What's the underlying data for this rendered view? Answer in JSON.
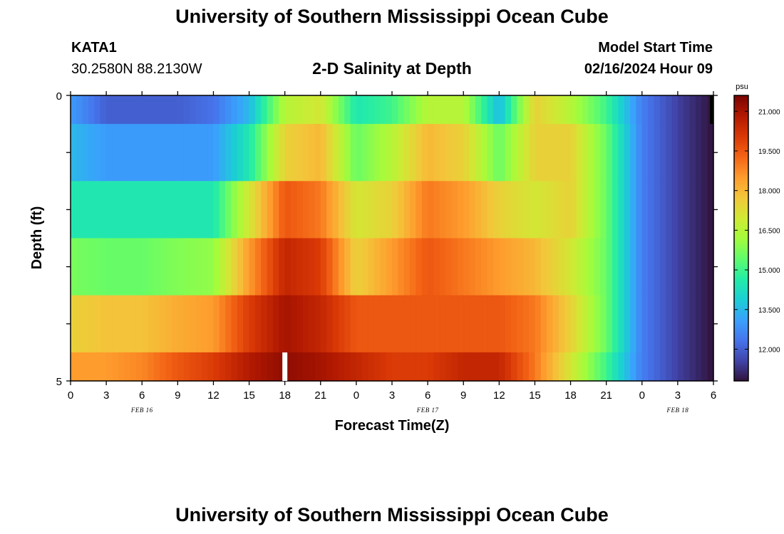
{
  "header": {
    "title": "University of Southern Mississippi Ocean Cube",
    "station": "KATA1",
    "coords": "30.2580N  88.2130W",
    "chart_title": "2-D Salinity at Depth",
    "model_start_label": "Model Start Time",
    "model_start_value": "02/16/2024 Hour 09"
  },
  "footer": {
    "title": "University of Southern Mississippi Ocean Cube"
  },
  "chart_data": {
    "type": "heatmap",
    "title": "2-D Salinity at Depth",
    "xlabel": "Forecast Time(Z)",
    "ylabel": "Depth (ft)",
    "y_tick_labels": [
      "0",
      "5"
    ],
    "ylim": [
      0,
      5
    ],
    "x_tick_labels": [
      "0",
      "3",
      "6",
      "9",
      "12",
      "15",
      "18",
      "21",
      "0",
      "3",
      "6",
      "9",
      "12",
      "15",
      "18",
      "21",
      "0",
      "3",
      "6"
    ],
    "date_labels": [
      {
        "label": "FEB 16",
        "at_hour": 6
      },
      {
        "label": "FEB 17",
        "at_hour": 30
      },
      {
        "label": "FEB 18",
        "at_hour": 51
      }
    ],
    "time_range_hours": [
      0,
      54
    ],
    "forecast_start_marker_hour": 18,
    "colorbar": {
      "unit": "psu",
      "range": [
        10.8,
        21.6
      ],
      "tick_labels": [
        "21.000",
        "19.500",
        "18.000",
        "16.500",
        "15.000",
        "13.500",
        "12.000"
      ],
      "tick_values": [
        21.0,
        19.5,
        18.0,
        16.5,
        15.0,
        13.5,
        12.0
      ],
      "colors": [
        "#30123b",
        "#4145ab",
        "#4675ed",
        "#39a2fc",
        "#1bcfd4",
        "#24eca6",
        "#61fc6c",
        "#a4fc3b",
        "#d1e834",
        "#f3c63a",
        "#fe9b2d",
        "#f36315",
        "#d93806",
        "#b11901",
        "#7a0402"
      ]
    },
    "anchor_hours": [
      0,
      3,
      6,
      9,
      12,
      15,
      18,
      21,
      24,
      27,
      30,
      33,
      36,
      39,
      42,
      45,
      48,
      51,
      54
    ],
    "layers": [
      {
        "depth_ft": "0-0.5",
        "values": [
          13.0,
          12.0,
          12.0,
          12.0,
          12.3,
          13.5,
          16.5,
          17.0,
          14.5,
          15.0,
          16.5,
          16.5,
          13.5,
          17.5,
          16.5,
          15.0,
          12.5,
          11.5,
          10.8
        ]
      },
      {
        "depth_ft": "0.5-1.5",
        "values": [
          13.5,
          13.0,
          13.0,
          13.0,
          13.0,
          14.5,
          17.5,
          18.0,
          15.5,
          16.5,
          18.0,
          17.5,
          15.5,
          17.5,
          17.5,
          15.5,
          12.5,
          11.5,
          10.8
        ]
      },
      {
        "depth_ft": "1.5-2.5",
        "values": [
          14.5,
          14.5,
          14.5,
          14.5,
          14.5,
          17.0,
          19.5,
          19.0,
          17.0,
          17.5,
          19.0,
          18.5,
          17.5,
          17.0,
          17.5,
          15.5,
          12.5,
          11.5,
          10.8
        ]
      },
      {
        "depth_ft": "2.5-3.5",
        "values": [
          15.7,
          15.5,
          15.5,
          15.8,
          16.0,
          18.5,
          20.5,
          20.0,
          17.5,
          18.5,
          19.5,
          19.0,
          18.5,
          18.0,
          17.0,
          15.5,
          12.5,
          11.5,
          10.8
        ]
      },
      {
        "depth_ft": "3.5-4.5",
        "values": [
          17.5,
          17.8,
          17.8,
          18.2,
          18.5,
          20.0,
          21.0,
          20.5,
          19.5,
          19.5,
          19.5,
          19.5,
          19.5,
          19.0,
          17.5,
          15.5,
          12.5,
          11.5,
          10.8
        ]
      },
      {
        "depth_ft": "4.5-5",
        "values": [
          18.5,
          18.5,
          18.8,
          19.5,
          20.0,
          20.8,
          21.3,
          21.0,
          20.5,
          20.0,
          20.0,
          20.5,
          20.5,
          19.0,
          17.0,
          15.0,
          12.5,
          11.5,
          10.8
        ]
      }
    ]
  }
}
